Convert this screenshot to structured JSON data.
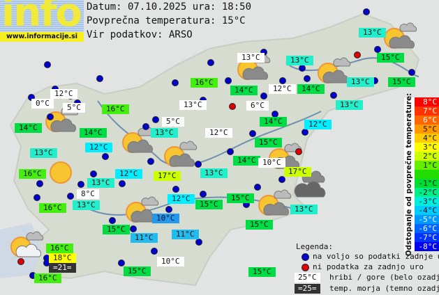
{
  "logo": {
    "word": "info",
    "url": "www.informacije.si"
  },
  "header": {
    "date_line": "Datum: 07.10.2025 ura: 18:50",
    "avg_line": "Povprečna temperatura: 15°C",
    "source_line": "Vir podatkov: ARSO"
  },
  "colors": {
    "c16": "#44ee11",
    "c15": "#00dd44",
    "c13": "#22eecc",
    "c12": "#00eeff",
    "c11": "#22bbee",
    "c10": "#2299ee",
    "c17": "#ccff00",
    "c18": "#ffff00",
    "mountain": "#ffffff",
    "sea": "#333333",
    "dot_ok": "#0000cc",
    "dot_missing": "#dd0000"
  },
  "stations": [
    {
      "t": "13°C",
      "c": "c13"
    },
    {
      "t": "15°C",
      "c": "c15"
    },
    {
      "t": "13°C",
      "c": "mountain"
    },
    {
      "t": "13°C",
      "c": "c13"
    },
    {
      "t": "16°C",
      "c": "c16"
    },
    {
      "t": "14°C",
      "c": "c15"
    },
    {
      "t": "12°C",
      "c": "mountain"
    },
    {
      "t": "14°C",
      "c": "c15"
    },
    {
      "t": "13°C",
      "c": "c13"
    },
    {
      "t": "15°C",
      "c": "c15"
    },
    {
      "t": "13°C",
      "c": "c13"
    },
    {
      "t": "12°C",
      "c": "mountain"
    },
    {
      "t": "0°C",
      "c": "mountain"
    },
    {
      "t": "5°C",
      "c": "mountain"
    },
    {
      "t": "16°C",
      "c": "c16"
    },
    {
      "t": "13°C",
      "c": "mountain"
    },
    {
      "t": "6°C",
      "c": "mountain"
    },
    {
      "t": "14°C",
      "c": "c15"
    },
    {
      "t": "12°C",
      "c": "c12"
    },
    {
      "t": "14°C",
      "c": "c15"
    },
    {
      "t": "5°C",
      "c": "mountain"
    },
    {
      "t": "14°C",
      "c": "c15"
    },
    {
      "t": "12°C",
      "c": "mountain"
    },
    {
      "t": "13°C",
      "c": "c13"
    },
    {
      "t": "15°C",
      "c": "c15"
    },
    {
      "t": "12°C",
      "c": "c12"
    },
    {
      "t": "13°C",
      "c": "c13"
    },
    {
      "t": "14°C",
      "c": "c15"
    },
    {
      "t": "10°C",
      "c": "mountain"
    },
    {
      "t": "17°C",
      "c": "c17"
    },
    {
      "t": "12°C",
      "c": "c12"
    },
    {
      "t": "17°C",
      "c": "c17"
    },
    {
      "t": "16°C",
      "c": "c16"
    },
    {
      "t": "13°C",
      "c": "c13"
    },
    {
      "t": "13°C",
      "c": "c13"
    },
    {
      "t": "8°C",
      "c": "mountain"
    },
    {
      "t": "13°C",
      "c": "c13"
    },
    {
      "t": "16°C",
      "c": "c16"
    },
    {
      "t": "12°C",
      "c": "c12"
    },
    {
      "t": "15°C",
      "c": "c15"
    },
    {
      "t": "15°C",
      "c": "c15"
    },
    {
      "t": "13°C",
      "c": "c13"
    },
    {
      "t": "15°C",
      "c": "c15"
    },
    {
      "t": "10°C",
      "c": "c10"
    },
    {
      "t": "15°C",
      "c": "c15"
    },
    {
      "t": "11°C",
      "c": "c11"
    },
    {
      "t": "11°C",
      "c": "c11"
    },
    {
      "t": "16°C",
      "c": "c16"
    },
    {
      "t": "18°C",
      "c": "c18"
    },
    {
      "t": "=21=",
      "c": "sea"
    },
    {
      "t": "16°C",
      "c": "c16"
    },
    {
      "t": "10°C",
      "c": "mountain"
    },
    {
      "t": "15°C",
      "c": "c15"
    },
    {
      "t": "15°C",
      "c": "c15"
    }
  ],
  "scale": {
    "title": "Odstopanje od povprečne temperature:",
    "rows": [
      {
        "t": "8°C",
        "bg": "#ff0000",
        "fg": "#ffffff"
      },
      {
        "t": "7°C",
        "bg": "#ff3300",
        "fg": "#ffffff"
      },
      {
        "t": "6°C",
        "bg": "#ff6600",
        "fg": "#ffffff"
      },
      {
        "t": "5°C",
        "bg": "#ff9900",
        "fg": "#111111"
      },
      {
        "t": "4°C",
        "bg": "#ffcc00",
        "fg": "#111111"
      },
      {
        "t": "3°C",
        "bg": "#ffff00",
        "fg": "#111111"
      },
      {
        "t": "2°C",
        "bg": "#ccff00",
        "fg": "#111111"
      },
      {
        "t": "1°C",
        "bg": "#66ee00",
        "fg": "#111111"
      },
      {
        "t": "",
        "bg": "#22dd00",
        "fg": "#111111"
      },
      {
        "t": "-1°C",
        "bg": "#00dd33",
        "fg": "#111111"
      },
      {
        "t": "-2°C",
        "bg": "#00ee88",
        "fg": "#111111"
      },
      {
        "t": "-3°C",
        "bg": "#00eedd",
        "fg": "#111111"
      },
      {
        "t": "-4°C",
        "bg": "#00ccff",
        "fg": "#111111"
      },
      {
        "t": "-5°C",
        "bg": "#0099ff",
        "fg": "#ffffff"
      },
      {
        "t": "-6°C",
        "bg": "#0066ff",
        "fg": "#ffffff"
      },
      {
        "t": "-7°C",
        "bg": "#0033ff",
        "fg": "#ffffff"
      },
      {
        "t": "-8°C",
        "bg": "#0000ee",
        "fg": "#ffffff"
      }
    ]
  },
  "legend": {
    "title": "Legenda:",
    "available": "na voljo so podatki zadnje ure",
    "missing": "ni podatka za zadnjo uro",
    "mountain_sample": "25°C",
    "mountain_text": "hribi / gore (belo ozadje)",
    "sea_sample": "=25=",
    "sea_text": "temp. morja (temno ozadje)"
  },
  "icons": {
    "sun_cloud": "partly-cloudy-icon",
    "sun": "sun-icon",
    "clouds": "overcast-icon"
  }
}
